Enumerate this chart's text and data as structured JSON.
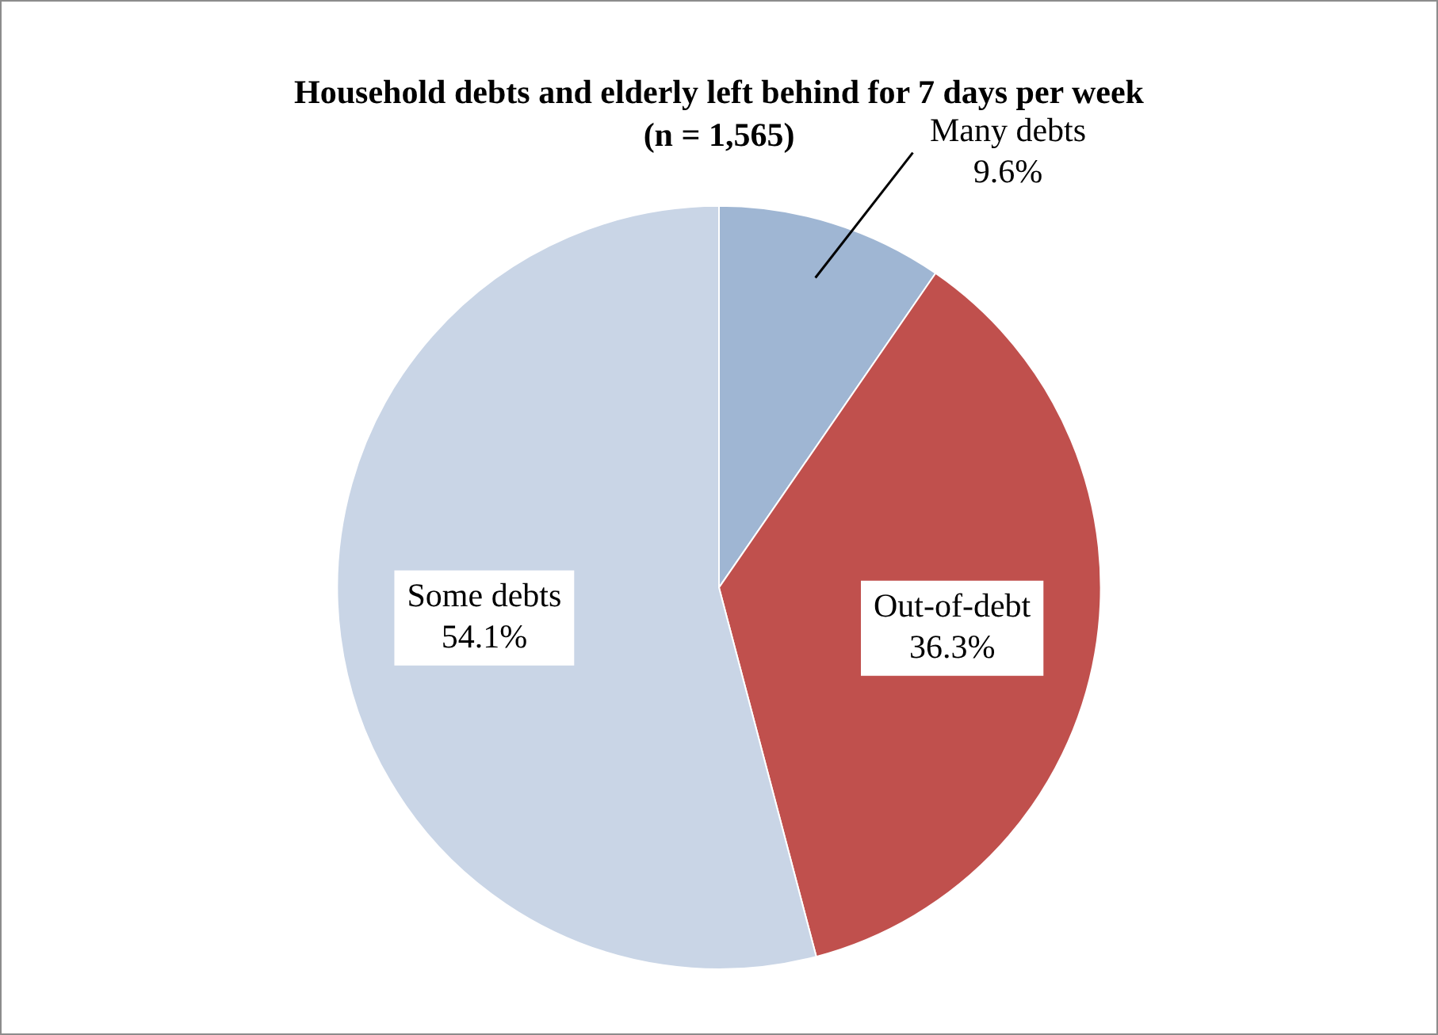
{
  "chart_data": {
    "type": "pie",
    "title": "Household debts and elderly left behind for 7 days per week",
    "subtitle": "(n = 1,565)",
    "categories": [
      "Many debts",
      "Out-of-debt",
      "Some debts"
    ],
    "values": [
      9.6,
      36.3,
      54.1
    ],
    "colors": [
      "#9fb6d3",
      "#c0504d",
      "#c9d5e6"
    ],
    "value_labels": [
      "9.6%",
      "36.3%",
      "54.1%"
    ],
    "legend": false
  }
}
